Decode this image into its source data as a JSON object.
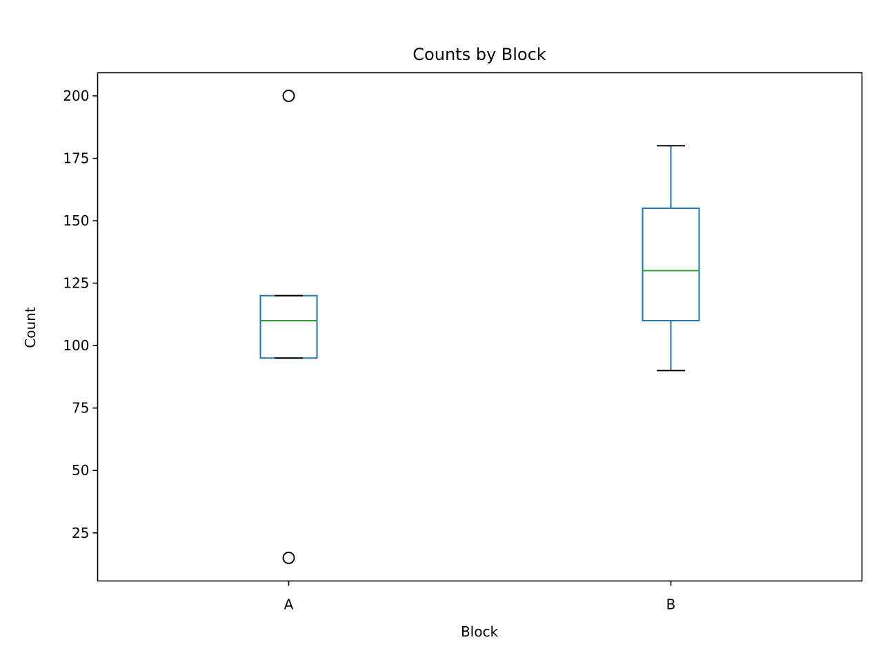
{
  "chart_data": {
    "type": "box",
    "title": "Counts by Block",
    "xlabel": "Block",
    "ylabel": "Count",
    "categories": [
      "A",
      "B"
    ],
    "boxes": [
      {
        "category": "A",
        "whisker_low": 95,
        "q1": 95,
        "median": 110,
        "q3": 120,
        "whisker_high": 120,
        "outliers": [
          200,
          15
        ]
      },
      {
        "category": "B",
        "whisker_low": 90,
        "q1": 110,
        "median": 130,
        "q3": 155,
        "whisker_high": 180,
        "outliers": []
      }
    ],
    "ylim": [
      5.75,
      209.25
    ],
    "yticks": [
      25,
      50,
      75,
      100,
      125,
      150,
      175,
      200
    ],
    "grid": false,
    "colors": {
      "box": "#1f77b4",
      "median": "#2ca02c",
      "whisker_cap": "#000000",
      "flier": "#000000",
      "axes": "#000000"
    }
  }
}
